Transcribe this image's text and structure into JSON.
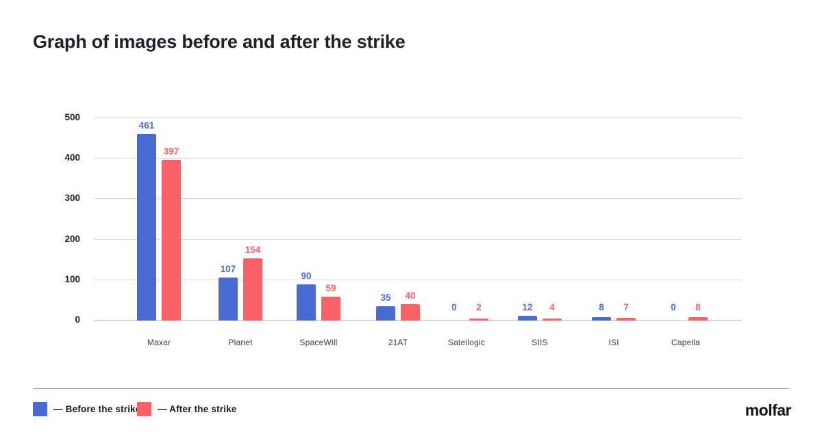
{
  "page": {
    "title": "Graph of images before and after the strike",
    "brand": "molfar"
  },
  "legend": {
    "items": [
      {
        "label": "— Before the strike",
        "color": "#4a6bd4"
      },
      {
        "label": "— After the strike",
        "color": "#f96167"
      }
    ]
  },
  "chart_data": {
    "type": "bar",
    "title": "Graph of images before and after the strike",
    "categories": [
      "Maxar",
      "Planet",
      "SpaceWill",
      "21AT",
      "Satellogic",
      "SIIS",
      "ISI",
      "Capella"
    ],
    "series": [
      {
        "name": "Before the strike",
        "color": "#4a6bd4",
        "values": [
          461,
          107,
          90,
          35,
          0,
          12,
          8,
          0
        ]
      },
      {
        "name": "After the strike",
        "color": "#f96167",
        "values": [
          397,
          154,
          59,
          40,
          2,
          4,
          7,
          8
        ]
      }
    ],
    "xlabel": "",
    "ylabel": "",
    "ylim": [
      0,
      500
    ],
    "yticks": [
      0,
      100,
      200,
      300,
      400,
      500
    ],
    "grid": true,
    "value_labels": true,
    "legend_position": "bottom-left"
  }
}
